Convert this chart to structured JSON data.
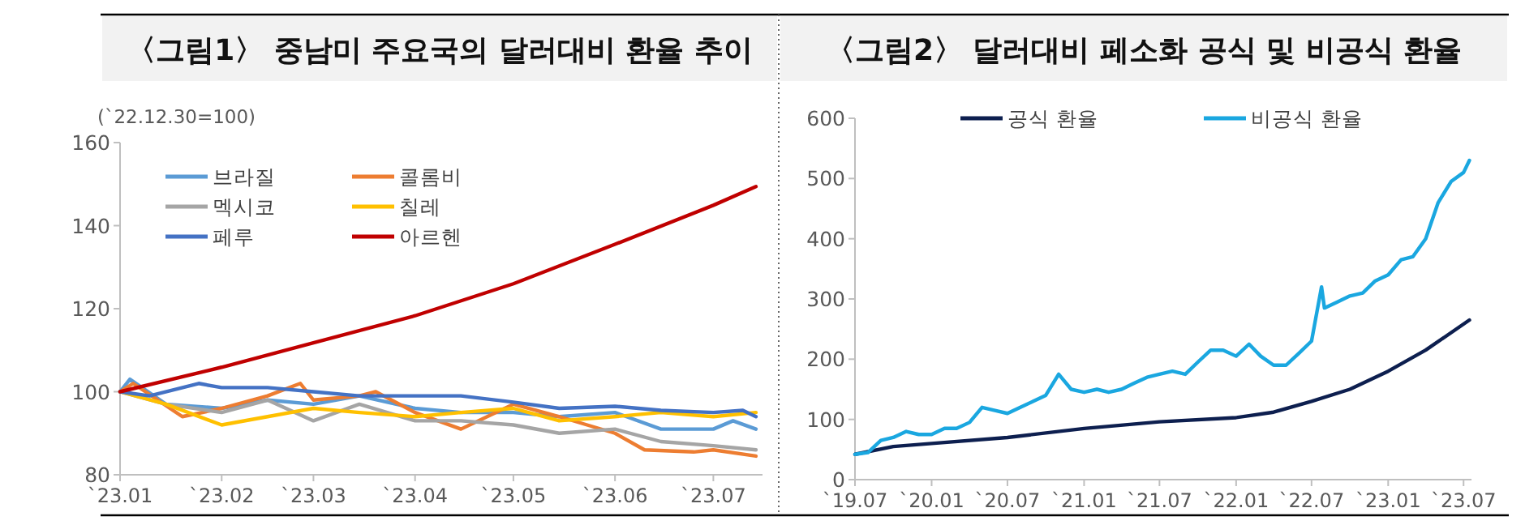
{
  "chart_data": [
    {
      "type": "line",
      "title": "〈그림1〉 중남미 주요국의 달러대비 환율 추이",
      "annotations": [
        "(`22.12.30=100)"
      ],
      "legend": "top left",
      "grid": false,
      "xlim": [
        "2023-01-01",
        "2023-07-16"
      ],
      "ylim": [
        80,
        160
      ],
      "yticks": [
        80,
        100,
        120,
        140,
        160
      ],
      "xticks": [
        {
          "value": "2023-01-01",
          "label": "`23.01"
        },
        {
          "value": "2023-02-01",
          "label": "`23.02"
        },
        {
          "value": "2023-03-01",
          "label": "`23.03"
        },
        {
          "value": "2023-04-01",
          "label": "`23.04"
        },
        {
          "value": "2023-05-01",
          "label": "`23.05"
        },
        {
          "value": "2023-06-01",
          "label": "`23.06"
        },
        {
          "value": "2023-07-01",
          "label": "`23.07"
        }
      ],
      "series": [
        {
          "name": "브라질",
          "color": "#5b9bd5",
          "x": [
            "2023-01-01",
            "2023-01-04",
            "2023-01-15",
            "2023-02-01",
            "2023-02-15",
            "2023-03-01",
            "2023-03-15",
            "2023-04-01",
            "2023-04-15",
            "2023-05-01",
            "2023-05-15",
            "2023-06-01",
            "2023-06-15",
            "2023-07-01",
            "2023-07-07",
            "2023-07-14"
          ],
          "values": [
            100,
            103,
            97,
            96,
            98,
            97,
            99,
            96,
            95,
            95,
            94,
            95,
            91,
            91,
            93,
            91
          ]
        },
        {
          "name": "콜롬비",
          "color": "#ed7d31",
          "x": [
            "2023-01-01",
            "2023-01-05",
            "2023-01-20",
            "2023-02-01",
            "2023-02-15",
            "2023-02-25",
            "2023-03-01",
            "2023-03-15",
            "2023-03-20",
            "2023-04-01",
            "2023-04-15",
            "2023-05-01",
            "2023-05-15",
            "2023-06-01",
            "2023-06-10",
            "2023-06-25",
            "2023-07-01",
            "2023-07-14"
          ],
          "values": [
            100,
            102,
            94,
            96,
            99,
            102,
            98,
            99,
            100,
            95,
            91,
            97,
            94,
            90,
            86,
            85.5,
            86,
            84.5
          ]
        },
        {
          "name": "멕시코",
          "color": "#a5a5a5",
          "x": [
            "2023-01-01",
            "2023-01-15",
            "2023-02-01",
            "2023-02-15",
            "2023-03-01",
            "2023-03-15",
            "2023-04-01",
            "2023-04-15",
            "2023-05-01",
            "2023-05-15",
            "2023-06-01",
            "2023-06-15",
            "2023-07-01",
            "2023-07-14"
          ],
          "values": [
            100,
            97,
            95,
            98,
            93,
            97,
            93,
            93,
            92,
            90,
            91,
            88,
            87,
            86
          ]
        },
        {
          "name": "칠레",
          "color": "#ffc000",
          "x": [
            "2023-01-01",
            "2023-01-15",
            "2023-02-01",
            "2023-02-15",
            "2023-03-01",
            "2023-03-15",
            "2023-04-01",
            "2023-04-15",
            "2023-05-01",
            "2023-05-15",
            "2023-06-01",
            "2023-06-15",
            "2023-07-01",
            "2023-07-14"
          ],
          "values": [
            100,
            97,
            92,
            94,
            96,
            95,
            94,
            95,
            96,
            93,
            94,
            95,
            94,
            95
          ]
        },
        {
          "name": "페루",
          "color": "#4472c4",
          "x": [
            "2023-01-01",
            "2023-01-10",
            "2023-01-25",
            "2023-02-01",
            "2023-02-15",
            "2023-03-01",
            "2023-03-15",
            "2023-04-01",
            "2023-04-15",
            "2023-05-01",
            "2023-05-15",
            "2023-06-01",
            "2023-06-15",
            "2023-07-01",
            "2023-07-10",
            "2023-07-14"
          ],
          "values": [
            100,
            99,
            102,
            101,
            101,
            100,
            99,
            99,
            99,
            97.5,
            96,
            96.5,
            95.5,
            95,
            95.5,
            94
          ]
        },
        {
          "name": "아르헨",
          "color": "#c00000",
          "x": [
            "2023-01-01",
            "2023-02-01",
            "2023-03-01",
            "2023-04-01",
            "2023-05-01",
            "2023-06-01",
            "2023-07-01",
            "2023-07-14"
          ],
          "values": [
            100,
            105.9,
            111.8,
            118.3,
            126,
            135.5,
            144.9,
            149.4
          ]
        }
      ]
    },
    {
      "type": "line",
      "title": "〈그림2〉 달러대비 페소화 공식 및 비공식 환율",
      "legend": "top",
      "grid": false,
      "xlim": [
        "2019-07-01",
        "2023-07-20"
      ],
      "ylim": [
        0,
        600
      ],
      "yticks": [
        0,
        100,
        200,
        300,
        400,
        500,
        600
      ],
      "xticks": [
        {
          "value": "2019-07-01",
          "label": "`19.07"
        },
        {
          "value": "2020-01-01",
          "label": "`20.01"
        },
        {
          "value": "2020-07-01",
          "label": "`20.07"
        },
        {
          "value": "2021-01-01",
          "label": "`21.01"
        },
        {
          "value": "2021-07-01",
          "label": "`21.07"
        },
        {
          "value": "2022-01-01",
          "label": "`22.01"
        },
        {
          "value": "2022-07-01",
          "label": "`22.07"
        },
        {
          "value": "2023-01-01",
          "label": "`23.01"
        },
        {
          "value": "2023-07-01",
          "label": "`23.07"
        }
      ],
      "series": [
        {
          "name": "공식 환율",
          "color": "#0d1f4f",
          "x": [
            "2019-07-01",
            "2019-10-01",
            "2020-01-01",
            "2020-07-01",
            "2021-01-01",
            "2021-07-01",
            "2022-01-01",
            "2022-04-01",
            "2022-07-01",
            "2022-10-01",
            "2023-01-01",
            "2023-04-01",
            "2023-07-15"
          ],
          "values": [
            42,
            55,
            60,
            70,
            85,
            96,
            103,
            112,
            130,
            150,
            180,
            215,
            265
          ]
        },
        {
          "name": "비공식 환율",
          "color": "#1aa7e0",
          "x": [
            "2019-07-01",
            "2019-08-01",
            "2019-09-01",
            "2019-10-01",
            "2019-11-01",
            "2019-12-01",
            "2020-01-01",
            "2020-02-01",
            "2020-03-01",
            "2020-04-01",
            "2020-05-01",
            "2020-06-01",
            "2020-07-01",
            "2020-08-01",
            "2020-09-01",
            "2020-10-01",
            "2020-11-01",
            "2020-12-01",
            "2021-01-01",
            "2021-02-01",
            "2021-03-01",
            "2021-04-01",
            "2021-05-01",
            "2021-06-01",
            "2021-07-01",
            "2021-08-01",
            "2021-09-01",
            "2021-10-01",
            "2021-11-01",
            "2021-12-01",
            "2022-01-01",
            "2022-02-01",
            "2022-03-01",
            "2022-04-01",
            "2022-05-01",
            "2022-06-01",
            "2022-07-01",
            "2022-07-25",
            "2022-08-01",
            "2022-09-01",
            "2022-10-01",
            "2022-11-01",
            "2022-12-01",
            "2023-01-01",
            "2023-02-01",
            "2023-03-01",
            "2023-04-01",
            "2023-05-01",
            "2023-06-01",
            "2023-07-01",
            "2023-07-15"
          ],
          "values": [
            42,
            45,
            65,
            70,
            80,
            75,
            75,
            85,
            85,
            95,
            120,
            115,
            110,
            120,
            130,
            140,
            175,
            150,
            145,
            150,
            145,
            150,
            160,
            170,
            175,
            180,
            175,
            195,
            215,
            215,
            205,
            225,
            205,
            190,
            190,
            210,
            230,
            320,
            285,
            295,
            305,
            310,
            330,
            340,
            365,
            370,
            400,
            460,
            495,
            510,
            530
          ]
        }
      ]
    }
  ]
}
